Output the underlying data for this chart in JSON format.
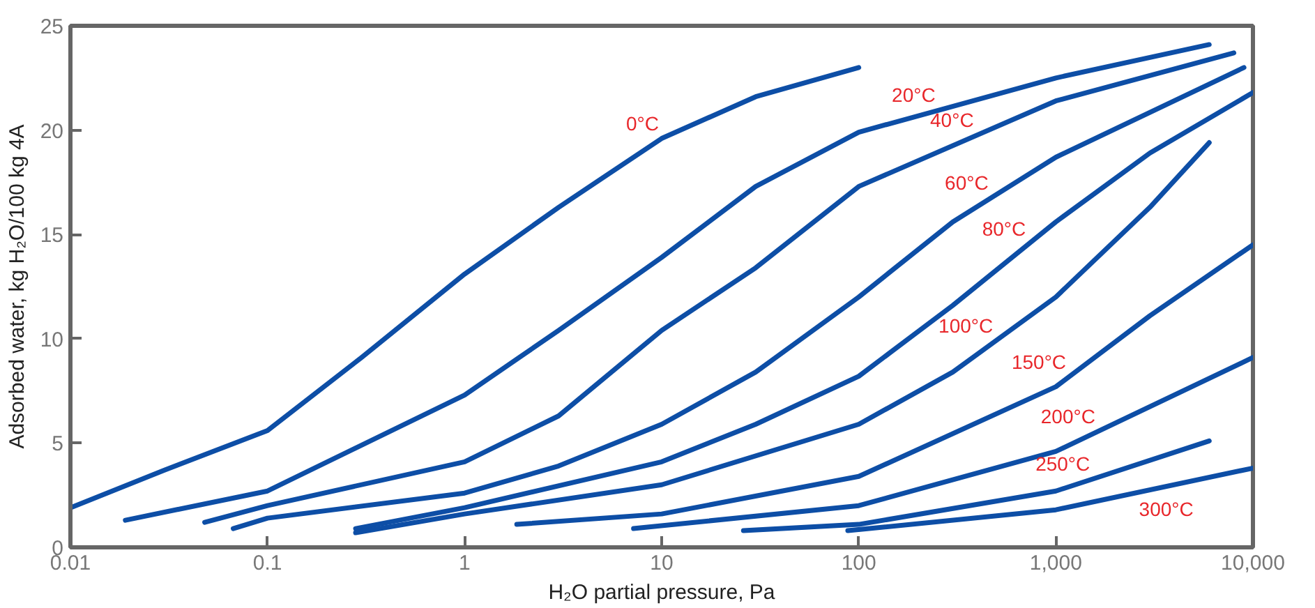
{
  "chart_data": {
    "type": "line",
    "xlabel": "H₂O partial pressure, Pa",
    "ylabel": "Adsorbed water, kg H₂O/100 kg 4A",
    "log": "x",
    "grid": false,
    "legend": false,
    "marker": "none",
    "line_style": "solid",
    "xlim": [
      0.01,
      10000
    ],
    "ylim": [
      0,
      25
    ],
    "xticks": [
      0.01,
      0.1,
      1,
      10,
      100,
      {
        "value": 1000,
        "label": "1,000"
      },
      {
        "value": 10000,
        "label": "10,000"
      }
    ],
    "yticks": [
      0,
      5,
      10,
      15,
      20,
      25
    ],
    "series": [
      {
        "name": "0°C",
        "color": "#0d4ea6",
        "x": [
          0.01,
          0.03,
          0.1,
          0.3,
          1,
          3,
          10,
          30,
          100
        ],
        "values": [
          1.9,
          3.7,
          5.6,
          9.1,
          13.1,
          16.3,
          19.6,
          21.6,
          23.0
        ]
      },
      {
        "name": "20°C",
        "color": "#0d4ea6",
        "x": [
          0.019,
          0.1,
          1,
          3,
          10,
          30,
          100,
          1000,
          6000
        ],
        "values": [
          1.3,
          2.7,
          7.3,
          10.4,
          13.9,
          17.3,
          19.9,
          22.5,
          24.1
        ]
      },
      {
        "name": "40°C",
        "color": "#0d4ea6",
        "x": [
          0.048,
          0.1,
          1,
          3,
          10,
          30,
          100,
          1000,
          8000
        ],
        "values": [
          1.2,
          2.0,
          4.1,
          6.3,
          10.4,
          13.4,
          17.3,
          21.4,
          23.7
        ]
      },
      {
        "name": "60°C",
        "color": "#0d4ea6",
        "x": [
          0.067,
          0.1,
          1,
          3,
          10,
          30,
          100,
          300,
          1000,
          9000
        ],
        "values": [
          0.9,
          1.4,
          2.6,
          3.9,
          5.9,
          8.4,
          12.0,
          15.6,
          18.7,
          23.0
        ]
      },
      {
        "name": "80°C",
        "color": "#0d4ea6",
        "x": [
          0.28,
          1,
          10,
          30,
          100,
          300,
          1000,
          3000,
          10000
        ],
        "values": [
          0.9,
          1.9,
          4.1,
          5.9,
          8.2,
          11.6,
          15.6,
          18.9,
          21.8
        ]
      },
      {
        "name": "100°C",
        "color": "#0d4ea6",
        "x": [
          0.28,
          1,
          10,
          100,
          300,
          1000,
          3000,
          6000
        ],
        "values": [
          0.7,
          1.6,
          3.0,
          5.9,
          8.4,
          12.0,
          16.3,
          19.4
        ]
      },
      {
        "name": "150°C",
        "color": "#0d4ea6",
        "x": [
          1.84,
          10,
          100,
          1000,
          3000,
          10000
        ],
        "values": [
          1.1,
          1.6,
          3.4,
          7.7,
          11.1,
          14.5
        ]
      },
      {
        "name": "200°C",
        "color": "#0d4ea6",
        "x": [
          7.2,
          100,
          1000,
          10000
        ],
        "values": [
          0.9,
          2.0,
          4.6,
          9.1
        ]
      },
      {
        "name": "250°C",
        "color": "#0d4ea6",
        "x": [
          26,
          100,
          1000,
          6000
        ],
        "values": [
          0.8,
          1.1,
          2.7,
          5.1
        ]
      },
      {
        "name": "300°C",
        "color": "#0d4ea6",
        "x": [
          88,
          1000,
          10000
        ],
        "values": [
          0.8,
          1.8,
          3.8
        ]
      }
    ]
  }
}
